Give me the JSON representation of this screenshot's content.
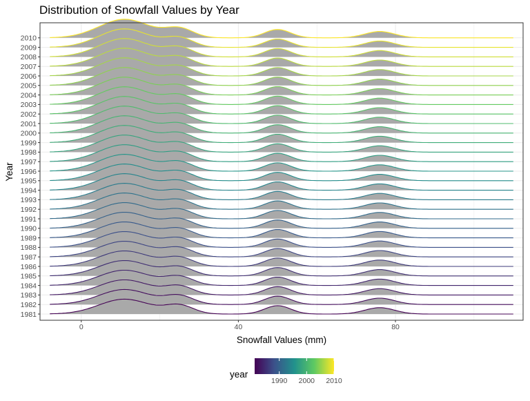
{
  "chart_data": {
    "type": "ridgeline",
    "title": "Distribution of Snowfall Values by Year",
    "xlabel": "Snowfall Values (mm)",
    "ylabel": "Year",
    "x_ticks": [
      0,
      40,
      80
    ],
    "xlim": [
      -10.5,
      112.5
    ],
    "x_range_data": [
      -8,
      110
    ],
    "years": [
      1981,
      1982,
      1983,
      1984,
      1985,
      1986,
      1987,
      1988,
      1989,
      1990,
      1991,
      1992,
      1993,
      1994,
      1995,
      1996,
      1997,
      1998,
      1999,
      2000,
      2001,
      2002,
      2003,
      2004,
      2005,
      2006,
      2007,
      2008,
      2009,
      2010
    ],
    "density_peaks_mm": [
      11,
      25,
      50,
      76
    ],
    "fill_color": "#a9a9a9",
    "line_palette": "viridis",
    "grid": true,
    "legend": {
      "title": "year",
      "position": "bottom",
      "type": "colorbar",
      "ticks": [
        1990,
        2000,
        2010
      ],
      "range": [
        1981,
        2010
      ]
    }
  }
}
